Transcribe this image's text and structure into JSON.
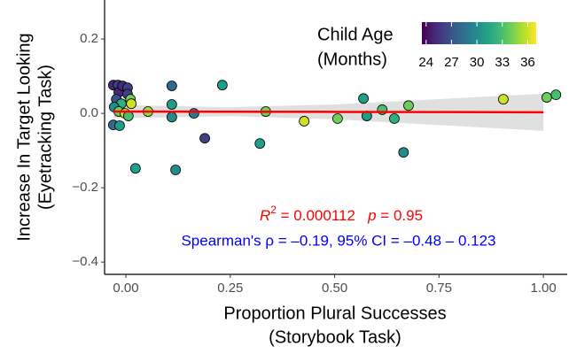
{
  "chart_data": {
    "type": "scatter",
    "x_label": [
      "Proportion Plural Successes",
      "(Storybook Task)"
    ],
    "y_label": [
      "Increase In Target Looking",
      "(Eyetracking Task)"
    ],
    "xlim": [
      -0.051,
      1.057
    ],
    "ylim": [
      -0.433,
      0.305
    ],
    "xticks": [
      {
        "value": 0,
        "label": "0.00"
      },
      {
        "value": 0.25,
        "label": "0.25"
      },
      {
        "value": 0.5,
        "label": "0.50"
      },
      {
        "value": 0.75,
        "label": "0.75"
      },
      {
        "value": 1,
        "label": "1.00"
      }
    ],
    "yticks": [
      {
        "value": -0.4,
        "label": "−0.4"
      },
      {
        "value": -0.2,
        "label": "−0.2"
      },
      {
        "value": 0,
        "label": "0.0"
      },
      {
        "value": 0.2,
        "label": "0.2"
      }
    ],
    "series": [
      {
        "x": [
          -0.03,
          -0.019,
          -0.017,
          -0.023,
          -0.008,
          0.004,
          0.004,
          0.011,
          0.013,
          -0.011,
          -0.028,
          -0.017,
          -0.002,
          0.006,
          -0.03,
          -0.015,
          0.11,
          0.11,
          0.11,
          0.053,
          0.163,
          0.231,
          0.189,
          0.023,
          0.119,
          0.321,
          0.335,
          0.427,
          0.507,
          0.569,
          0.577,
          0.614,
          0.643,
          0.665,
          0.677,
          0.904,
          1.008,
          1.03
        ],
        "values": [
          0.076,
          0.076,
          0.057,
          0.038,
          0.074,
          0.069,
          0.052,
          0.038,
          0.026,
          0.026,
          0.017,
          0.005,
          0.0,
          -0.007,
          -0.031,
          -0.033,
          0.074,
          0.024,
          -0.01,
          0.005,
          0.0,
          0.076,
          -0.067,
          -0.148,
          -0.152,
          -0.081,
          0.005,
          -0.021,
          -0.014,
          0.04,
          -0.007,
          0.01,
          -0.014,
          -0.105,
          0.021,
          0.038,
          0.043,
          0.05
        ],
        "age": [
          25,
          26,
          25,
          27,
          25,
          26,
          26,
          34,
          36,
          32,
          30,
          34,
          36,
          33,
          28,
          31,
          28,
          31,
          30,
          35,
          29,
          31,
          26,
          31,
          30,
          31,
          34,
          36,
          34,
          31,
          31,
          33,
          32,
          30,
          34,
          36,
          34,
          33
        ]
      }
    ],
    "fit": {
      "color": "#ff0000",
      "band_color": "#e0e0e0",
      "x": [
        -0.03,
        0.25,
        0.5,
        0.75,
        1.0
      ],
      "y": [
        0.005,
        0.0045,
        0.004,
        0.0035,
        0.003
      ],
      "lower": [
        -0.013,
        -0.0075,
        -0.016,
        -0.0315,
        -0.047
      ],
      "upper": [
        0.023,
        0.0165,
        0.024,
        0.0385,
        0.053
      ]
    },
    "colorbar": {
      "title": [
        "Child Age",
        "(Months)"
      ],
      "colormap": "viridis",
      "clim": [
        23.5,
        37
      ],
      "ticks": [
        24,
        27,
        30,
        33,
        36
      ]
    },
    "annotations": [
      {
        "parts": [
          "R",
          "2",
          " = 0.000112   ",
          "p",
          " = 0.95"
        ],
        "color": "#ff0000"
      },
      {
        "text": "Spearman's ρ = –0.19, 95% CI = –0.48 – 0.123",
        "color": "#0000ff"
      }
    ]
  }
}
